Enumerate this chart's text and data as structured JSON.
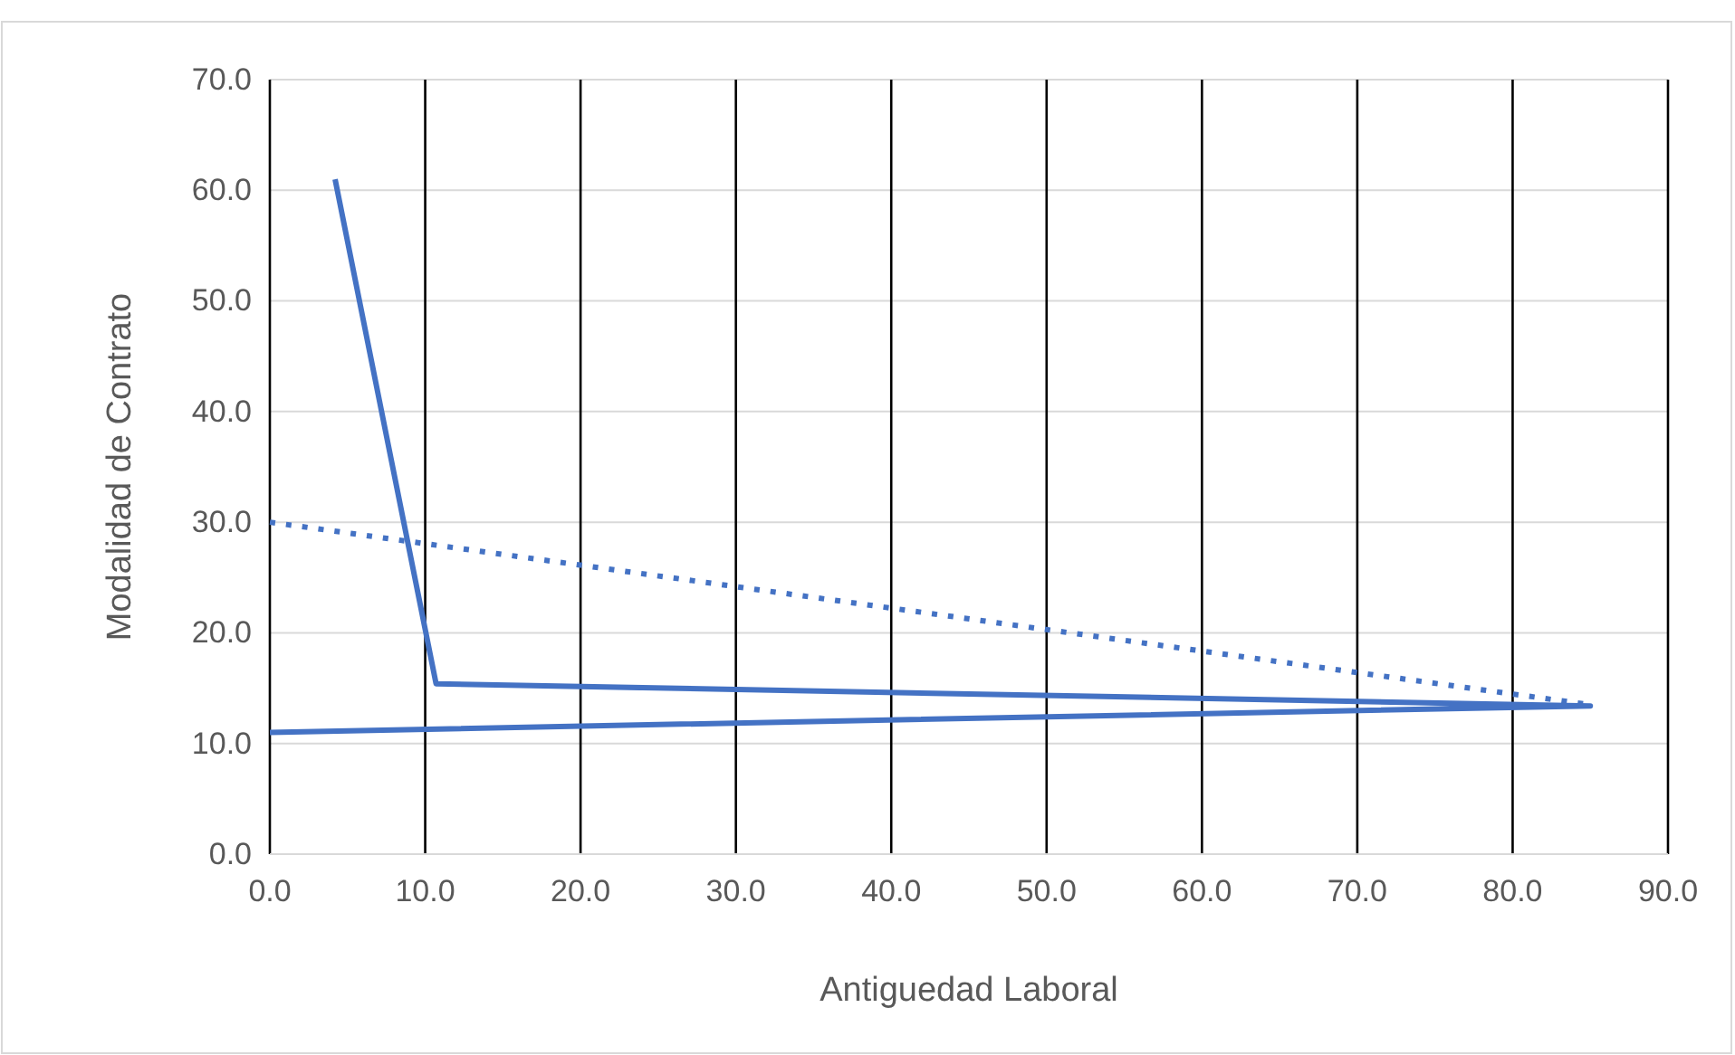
{
  "chart_data": {
    "type": "line",
    "xlabel": "Antiguedad Laboral",
    "ylabel": "Modalidad de Contrato",
    "xlim": [
      0,
      90
    ],
    "ylim": [
      0,
      70
    ],
    "xticks": [
      {
        "value": 0,
        "label": "0.0"
      },
      {
        "value": 10,
        "label": "10.0"
      },
      {
        "value": 20,
        "label": "20.0"
      },
      {
        "value": 30,
        "label": "30.0"
      },
      {
        "value": 40,
        "label": "40.0"
      },
      {
        "value": 50,
        "label": "50.0"
      },
      {
        "value": 60,
        "label": "60.0"
      },
      {
        "value": 70,
        "label": "70.0"
      },
      {
        "value": 80,
        "label": "80.0"
      },
      {
        "value": 90,
        "label": "90.0"
      }
    ],
    "yticks": [
      {
        "value": 0,
        "label": "0.0"
      },
      {
        "value": 10,
        "label": "10.0"
      },
      {
        "value": 20,
        "label": "20.0"
      },
      {
        "value": 30,
        "label": "30.0"
      },
      {
        "value": 40,
        "label": "40.0"
      },
      {
        "value": 50,
        "label": "50.0"
      },
      {
        "value": 60,
        "label": "60.0"
      },
      {
        "value": 70,
        "label": "70.0"
      }
    ],
    "grid": true,
    "marker": "none",
    "series": [
      {
        "color": "#4472c4",
        "x": [
          4.2,
          10.7,
          85,
          0
        ],
        "values": [
          61,
          15.4,
          13.4,
          11
        ],
        "line_style": "solid"
      },
      {
        "type": "line",
        "color": "#4472c4",
        "x": [
          0,
          85
        ],
        "values": [
          30,
          13.5
        ],
        "line_style": "dotted"
      }
    ]
  }
}
